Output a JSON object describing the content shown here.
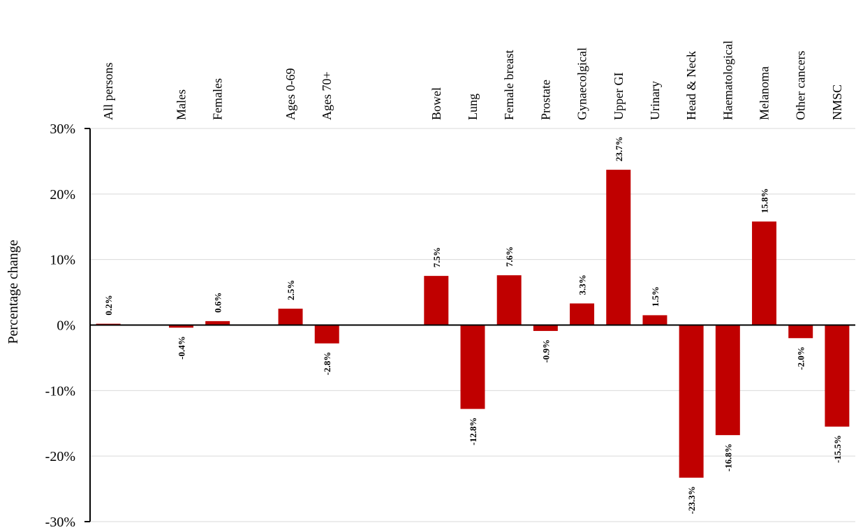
{
  "chart_data": {
    "type": "bar",
    "ylabel": "Percentage change",
    "xlabel": "",
    "ylim": [
      -30,
      30
    ],
    "yticks": [
      30,
      20,
      10,
      0,
      -10,
      -20,
      -30
    ],
    "ytick_labels": [
      "30%",
      "20%",
      "10%",
      "0%",
      "-10%",
      "-20%",
      "-30%"
    ],
    "grid": true,
    "bar_color": "#C00000",
    "categories": [
      "All persons",
      "",
      "Males",
      "Females",
      "",
      "Ages 0-69",
      "Ages 70+",
      "",
      "",
      "Bowel",
      "Lung",
      "Female breast",
      "Prostate",
      "Gynaecolgical",
      "Upper GI",
      "Urinary",
      "Head & Neck",
      "Haematological",
      "Melanoma",
      "Other cancers",
      "NMSC"
    ],
    "values": [
      0.2,
      null,
      -0.4,
      0.6,
      null,
      2.5,
      -2.8,
      null,
      null,
      7.5,
      -12.8,
      7.6,
      -0.9,
      3.3,
      23.7,
      1.5,
      -23.3,
      -16.8,
      15.8,
      -2.0,
      -15.5
    ],
    "data_labels": [
      "0.2%",
      "",
      "-0.4%",
      "0.6%",
      "",
      "2.5%",
      "-2.8%",
      "",
      "",
      "7.5%",
      "-12.8%",
      "7.6%",
      "-0.9%",
      "3.3%",
      "23.7%",
      "1.5%",
      "-23.3%",
      "-16.8%",
      "15.8%",
      "-2.0%",
      "-15.5%"
    ]
  }
}
